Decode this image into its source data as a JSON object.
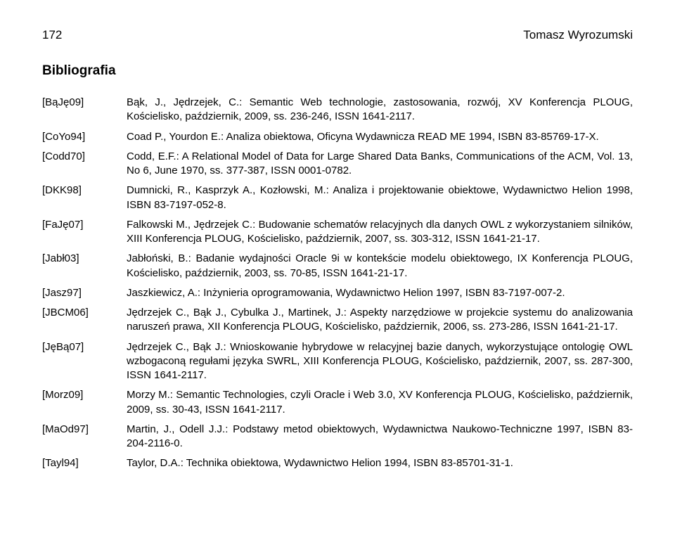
{
  "header": {
    "page_number": "172",
    "author": "Tomasz Wyrozumski"
  },
  "section_title": "Bibliografia",
  "entries": [
    {
      "key": "[BąJę09]",
      "text": "Bąk, J., Jędrzejek, C.: Semantic Web technologie, zastosowania, rozwój, XV Konferencja PLOUG, Kościelisko, październik, 2009, ss. 236-246, ISSN 1641-2117."
    },
    {
      "key": "[CoYo94]",
      "text": "Coad P., Yourdon E.: Analiza obiektowa, Oficyna Wydawnicza READ ME 1994, ISBN 83-85769-17-X."
    },
    {
      "key": "[Codd70]",
      "text": "Codd, E.F.: A Relational Model of Data for Large Shared Data Banks, Communications of the ACM, Vol. 13, No 6, June 1970, ss. 377-387, ISSN 0001-0782."
    },
    {
      "key": "[DKK98]",
      "text": "Dumnicki, R., Kasprzyk A., Kozłowski, M.: Analiza i projektowanie obiektowe, Wydawnictwo Helion 1998, ISBN 83-7197-052-8."
    },
    {
      "key": "[FaJę07]",
      "text": "Falkowski M., Jędrzejek C.: Budowanie schematów relacyjnych dla danych OWL z wykorzystaniem silników, XIII Konferencja PLOUG, Kościelisko, październik, 2007, ss. 303-312, ISSN 1641-21-17."
    },
    {
      "key": "[Jabł03]",
      "text": "Jabłoński, B.: Badanie wydajności Oracle 9i w kontekście modelu obiektowego, IX Konferencja PLOUG, Kościelisko, październik, 2003, ss. 70-85, ISSN 1641-21-17."
    },
    {
      "key": "[Jasz97]",
      "text": "Jaszkiewicz, A.: Inżynieria oprogramowania, Wydawnictwo Helion 1997, ISBN 83-7197-007-2."
    },
    {
      "key": "[JBCM06]",
      "text": "Jędrzejek C., Bąk J., Cybulka J., Martinek, J.: Aspekty narzędziowe w projekcie systemu do analizowania naruszeń prawa, XII Konferencja PLOUG, Kościelisko, październik, 2006, ss. 273-286, ISSN 1641-21-17."
    },
    {
      "key": "[JęBą07]",
      "text": "Jędrzejek C., Bąk J.: Wnioskowanie hybrydowe w relacyjnej bazie danych, wykorzystujące ontologię OWL wzbogaconą regułami języka SWRL, XIII Konferencja PLOUG, Kościelisko, październik, 2007, ss. 287-300, ISSN 1641-2117."
    },
    {
      "key": "[Morz09]",
      "text": "Morzy M.: Semantic Technologies, czyli Oracle i Web 3.0, XV Konferencja PLOUG, Kościelisko, październik, 2009, ss. 30-43, ISSN 1641-2117."
    },
    {
      "key": "[MaOd97]",
      "text": "Martin, J., Odell J.J.: Podstawy metod obiektowych, Wydawnictwa Naukowo-Techniczne 1997, ISBN 83-204-2116-0."
    },
    {
      "key": "[Tayl94]",
      "text": "Taylor, D.A.: Technika obiektowa, Wydawnictwo Helion 1994, ISBN 83-85701-31-1."
    }
  ]
}
